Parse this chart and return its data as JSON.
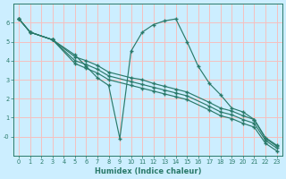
{
  "xlabel": "Humidex (Indice chaleur)",
  "bg_color": "#cceeff",
  "grid_color": "#f5c0c0",
  "line_color": "#2a7a6a",
  "xlim": [
    -0.5,
    23.5
  ],
  "ylim": [
    -1.0,
    7.0
  ],
  "yticks": [
    0,
    1,
    2,
    3,
    4,
    5,
    6
  ],
  "ytick_labels": [
    "-0",
    "1",
    "2",
    "3",
    "4",
    "5",
    "6"
  ],
  "xticks": [
    0,
    1,
    2,
    3,
    4,
    5,
    6,
    7,
    8,
    9,
    10,
    11,
    12,
    13,
    14,
    15,
    16,
    17,
    18,
    19,
    20,
    21,
    22,
    23
  ],
  "lines": [
    {
      "x": [
        0,
        1,
        3,
        5,
        6,
        7,
        8,
        9,
        10,
        11,
        12,
        13,
        14,
        15,
        16,
        17,
        18,
        19,
        20,
        21,
        22,
        23
      ],
      "y": [
        6.2,
        5.5,
        5.1,
        4.3,
        3.7,
        3.1,
        2.7,
        -0.1,
        4.5,
        5.5,
        5.9,
        6.1,
        6.2,
        5.0,
        3.7,
        2.8,
        2.2,
        1.5,
        1.3,
        0.9,
        -0.1,
        -0.5
      ]
    },
    {
      "x": [
        0,
        1,
        3,
        5,
        6,
        7,
        8,
        10,
        11,
        12,
        13,
        14,
        15,
        17,
        18,
        19,
        20,
        21,
        22,
        23
      ],
      "y": [
        6.2,
        5.5,
        5.1,
        4.2,
        4.0,
        3.75,
        3.4,
        3.1,
        3.0,
        2.8,
        2.65,
        2.5,
        2.35,
        1.8,
        1.5,
        1.35,
        1.1,
        0.9,
        -0.05,
        -0.45
      ]
    },
    {
      "x": [
        0,
        1,
        3,
        5,
        6,
        7,
        8,
        10,
        11,
        12,
        13,
        14,
        15,
        17,
        18,
        19,
        20,
        21,
        22,
        23
      ],
      "y": [
        6.2,
        5.5,
        5.1,
        4.0,
        3.8,
        3.55,
        3.2,
        2.9,
        2.75,
        2.6,
        2.45,
        2.3,
        2.15,
        1.6,
        1.3,
        1.15,
        0.9,
        0.7,
        -0.2,
        -0.6
      ]
    },
    {
      "x": [
        0,
        1,
        3,
        5,
        6,
        7,
        8,
        10,
        11,
        12,
        13,
        14,
        15,
        17,
        18,
        19,
        20,
        21,
        22,
        23
      ],
      "y": [
        6.2,
        5.5,
        5.1,
        3.85,
        3.6,
        3.35,
        3.0,
        2.7,
        2.55,
        2.4,
        2.25,
        2.1,
        1.95,
        1.4,
        1.1,
        0.95,
        0.7,
        0.5,
        -0.35,
        -0.75
      ]
    }
  ]
}
